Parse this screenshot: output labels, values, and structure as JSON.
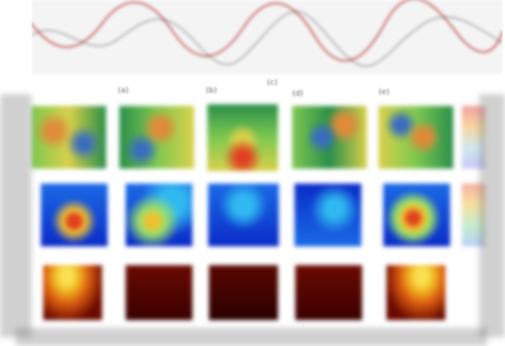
{
  "figure": {
    "panel_labels": [
      "(a)",
      "(b)",
      "(c)",
      "(d)",
      "(e)"
    ]
  },
  "rows": [
    {
      "name": "row-1",
      "colormap": [
        "#2a8f4a",
        "#7ec850",
        "#d8d04a",
        "#e08a3a",
        "#3a6cc0"
      ]
    },
    {
      "name": "row-2",
      "colormap": [
        "#0a2cc8",
        "#1a6ae6",
        "#30b8f0",
        "#9ae06a",
        "#f0c030",
        "#e04020"
      ]
    },
    {
      "name": "row-3",
      "colormap": [
        "#3a0000",
        "#6a0a00",
        "#a01800",
        "#d85a10",
        "#f0b020",
        "#f8e050"
      ]
    }
  ],
  "colors": {
    "curve_primary": "#c0504d",
    "curve_secondary": "#333333"
  }
}
